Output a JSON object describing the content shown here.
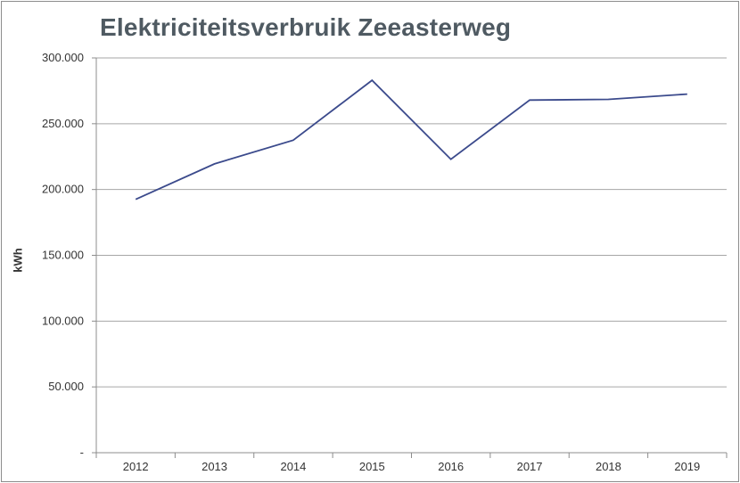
{
  "chart_data": {
    "type": "line",
    "title": "Elektriciteitsverbruik Zeeasterweg",
    "xlabel": "",
    "ylabel": "kWh",
    "categories": [
      "2012",
      "2013",
      "2014",
      "2015",
      "2016",
      "2017",
      "2018",
      "2019"
    ],
    "series": [
      {
        "values": [
          192500,
          219500,
          237500,
          283000,
          223000,
          268000,
          268500,
          272500
        ]
      }
    ],
    "ylim": [
      0,
      300000
    ],
    "yticks": [
      0,
      50000,
      100000,
      150000,
      200000,
      250000,
      300000
    ],
    "ytick_labels": [
      "-",
      "50.000",
      "100.000",
      "150.000",
      "200.000",
      "250.000",
      "300.000"
    ],
    "grid": true,
    "legend": "none",
    "line_color": "#3b4a8c",
    "grid_color": "#a6a6a6"
  }
}
